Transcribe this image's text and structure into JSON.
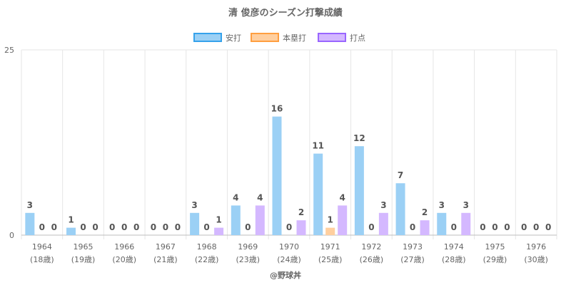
{
  "chart_data": {
    "type": "bar",
    "title": "清 俊彦のシーズン打撃成績",
    "categories": [
      "1964",
      "1965",
      "1966",
      "1967",
      "1968",
      "1969",
      "1970",
      "1971",
      "1972",
      "1973",
      "1974",
      "1975",
      "1976"
    ],
    "category_sublabels": [
      "(18歳)",
      "(19歳)",
      "(20歳)",
      "(21歳)",
      "(22歳)",
      "(23歳)",
      "(24歳)",
      "(25歳)",
      "(26歳)",
      "(27歳)",
      "(28歳)",
      "(29歳)",
      "(30歳)"
    ],
    "series": [
      {
        "name": "安打",
        "fill": "#9bd0f5",
        "stroke": "#36a2eb",
        "values": [
          3,
          1,
          0,
          0,
          3,
          4,
          16,
          11,
          12,
          7,
          3,
          0,
          0
        ]
      },
      {
        "name": "本塁打",
        "fill": "#ffcf9f",
        "stroke": "#ff9f40",
        "values": [
          0,
          0,
          0,
          0,
          0,
          0,
          0,
          1,
          0,
          0,
          0,
          0,
          0
        ]
      },
      {
        "name": "打点",
        "fill": "#d4b8ff",
        "stroke": "#9966ff",
        "values": [
          0,
          0,
          0,
          0,
          1,
          4,
          2,
          4,
          3,
          2,
          3,
          0,
          0
        ]
      }
    ],
    "ylim": [
      0,
      25
    ],
    "yticks": [
      "0",
      "25"
    ],
    "grid": true,
    "legend": "top"
  },
  "footer": "@野球丼"
}
